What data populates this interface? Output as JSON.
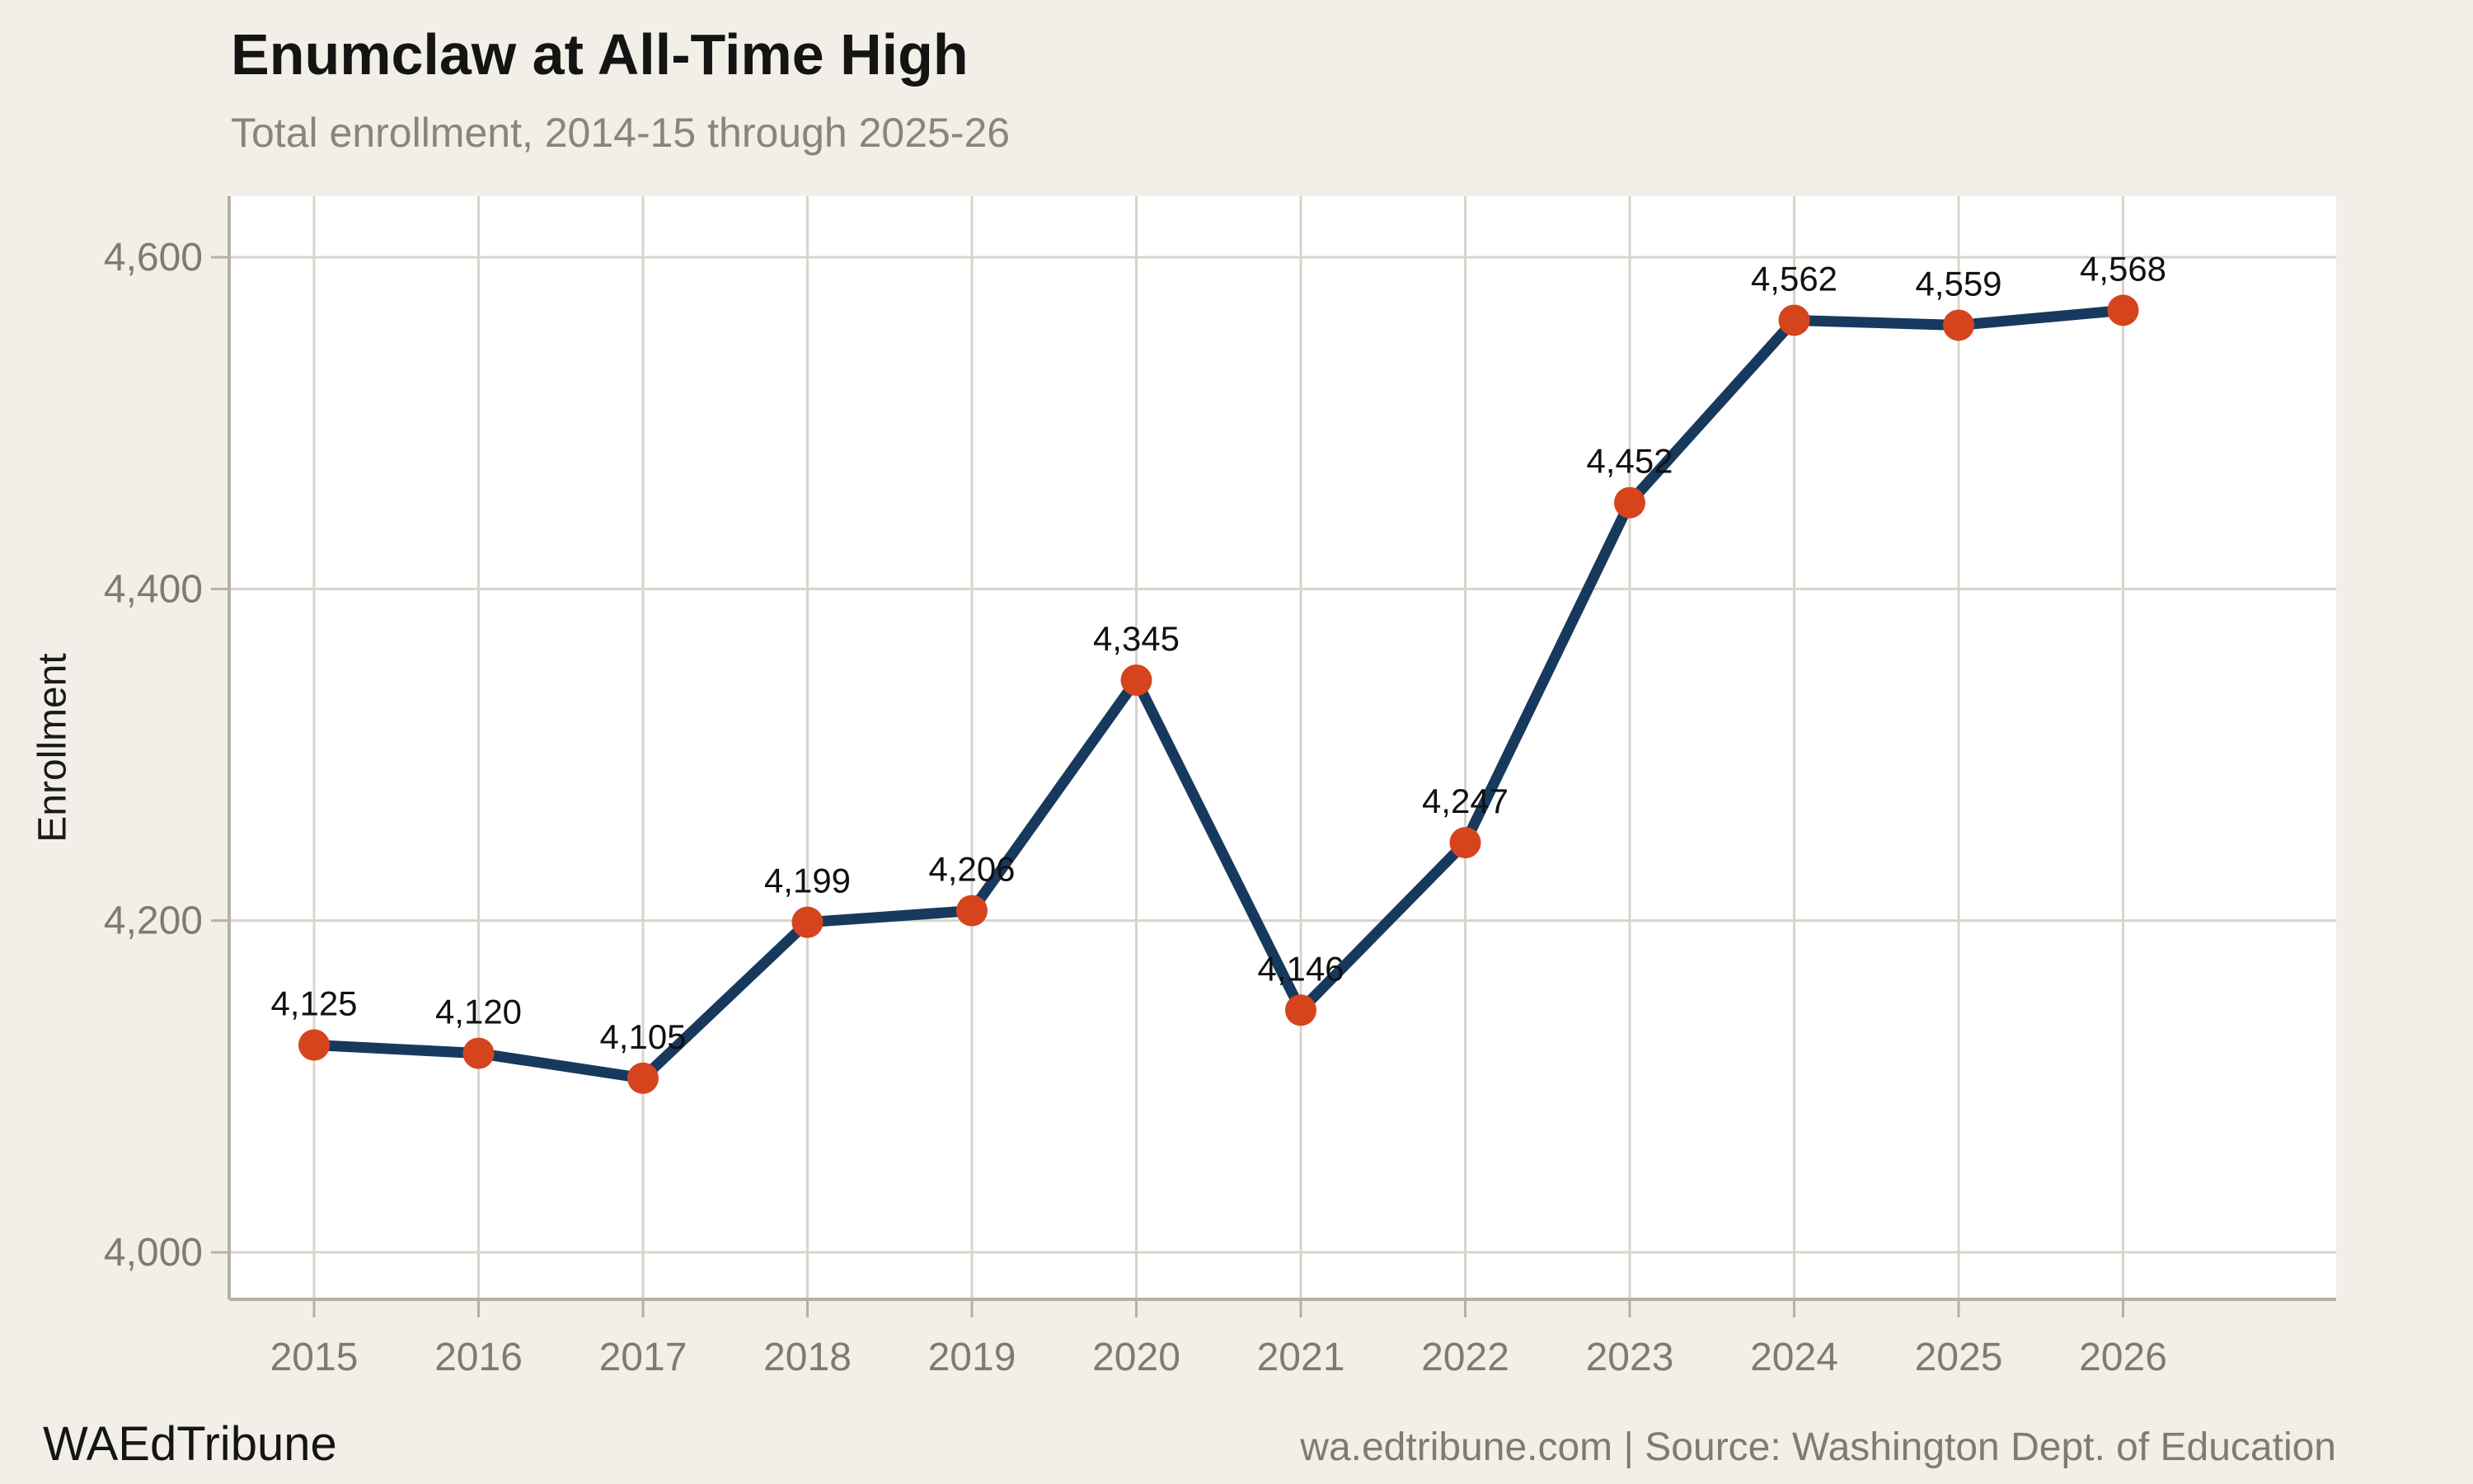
{
  "header": {
    "title": "Enumclaw at All-Time High",
    "subtitle": "Total enrollment, 2014-15 through 2025-26"
  },
  "footer": {
    "brand": "WAEdTribune",
    "source": "wa.edtribune.com | Source: Washington Dept. of Education"
  },
  "chart_data": {
    "type": "line",
    "title": "Enumclaw at All-Time High",
    "subtitle": "Total enrollment, 2014-15 through 2025-26",
    "xlabel": "",
    "ylabel": "Enrollment",
    "categories": [
      2015,
      2016,
      2017,
      2018,
      2019,
      2020,
      2021,
      2022,
      2023,
      2024,
      2025,
      2026
    ],
    "xtick_labels": [
      "2015",
      "2016",
      "2017",
      "2018",
      "2019",
      "2020",
      "2021",
      "2022",
      "2023",
      "2024",
      "2025",
      "2026"
    ],
    "series": [
      {
        "name": "Total enrollment",
        "values": [
          4125,
          4120,
          4105,
          4199,
          4206,
          4345,
          4146,
          4247,
          4452,
          4562,
          4559,
          4568
        ],
        "point_labels": [
          "4,125",
          "4,120",
          "4,105",
          "4,199",
          "4,206",
          "4,345",
          "4,146",
          "4,247",
          "4,452",
          "4,562",
          "4,559",
          "4,568"
        ]
      }
    ],
    "yticks": [
      4000,
      4200,
      4400,
      4600
    ],
    "ytick_labels": [
      "4,000",
      "4,200",
      "4,400",
      "4,600"
    ],
    "ylim": [
      3972,
      4637
    ],
    "grid": true,
    "legend": "none",
    "colors": {
      "line": "#18395e",
      "marker": "#d5441c",
      "background": "#f2efe9",
      "plot_background": "#ffffff",
      "gridline": "#d8d4ca",
      "axis": "#b6b0a5",
      "tick_text": "#807a70",
      "point_label_text": "#111111"
    }
  }
}
